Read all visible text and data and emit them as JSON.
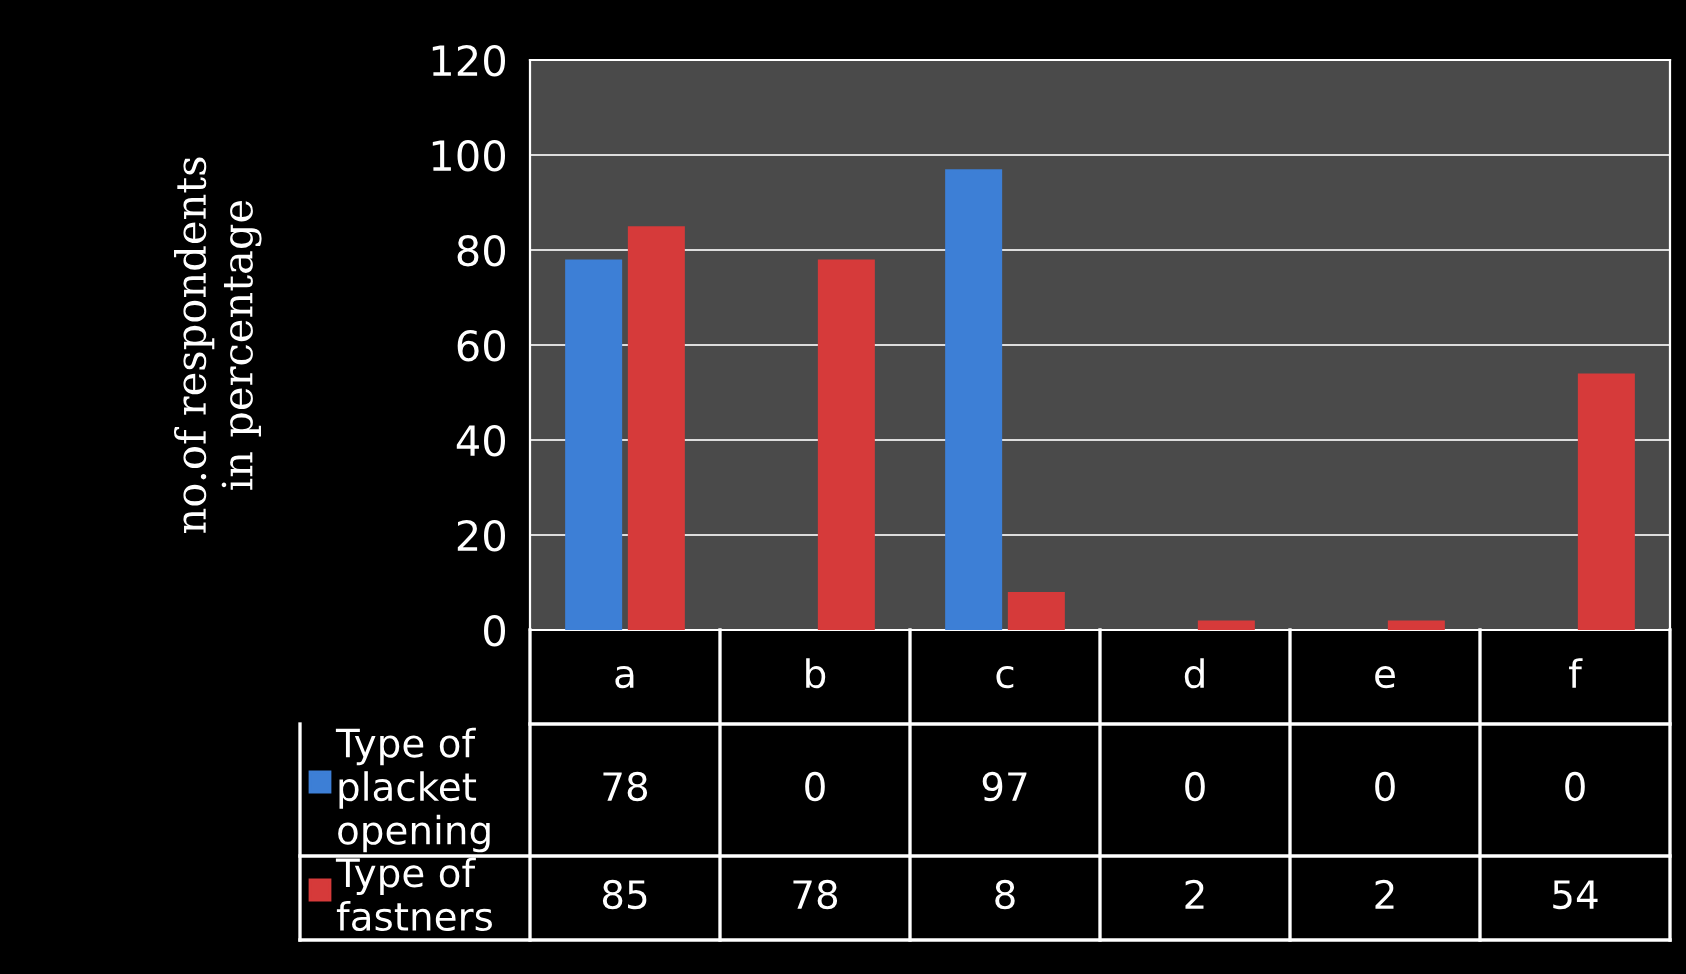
{
  "chart_data": {
    "type": "bar",
    "ylabel": "no.of respondents\nin percentage",
    "categories": [
      "a",
      "b",
      "c",
      "d",
      "e",
      "f"
    ],
    "series": [
      {
        "name": "Type of placket opening",
        "color": "#3d7fd6",
        "values": [
          78,
          0,
          97,
          0,
          0,
          0
        ]
      },
      {
        "name": "Type of fastners",
        "color": "#d63a3a",
        "values": [
          85,
          78,
          8,
          2,
          2,
          54
        ]
      }
    ],
    "ylim": [
      0,
      120
    ],
    "yticks": [
      0,
      20,
      40,
      60,
      80,
      100,
      120
    ],
    "grid": "y",
    "legend": "bottom",
    "data_labels": true
  }
}
